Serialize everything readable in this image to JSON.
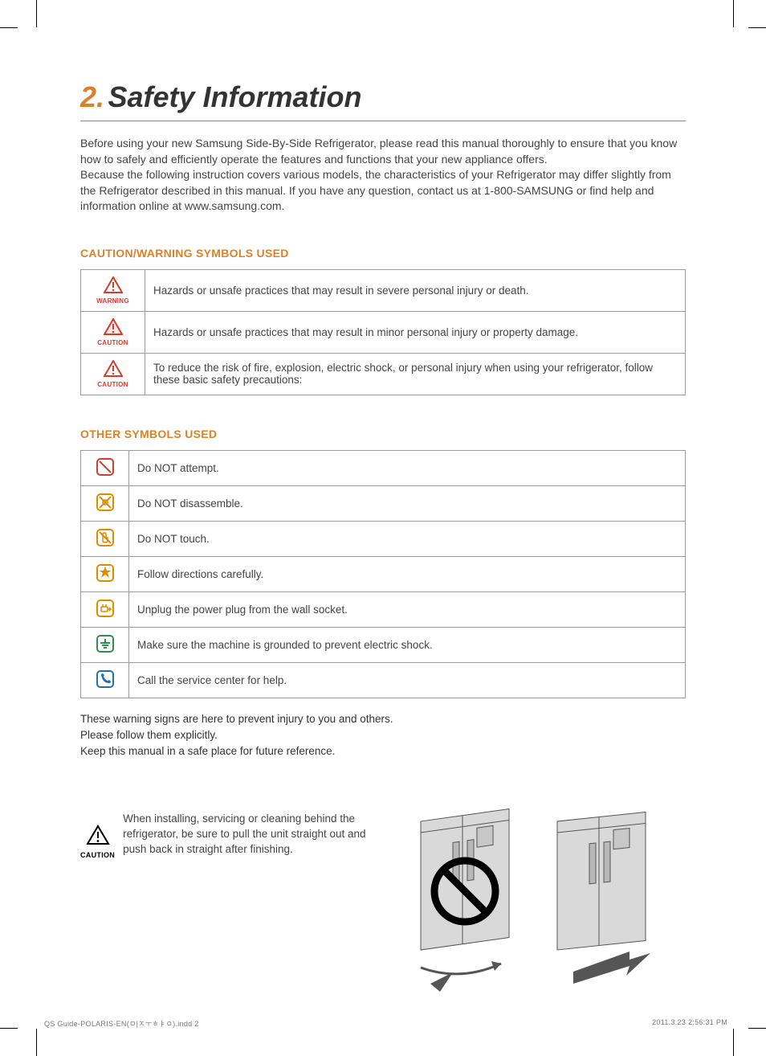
{
  "colors": {
    "accent": "#d9822b",
    "text": "#333333",
    "body": "#444444",
    "border": "#9a9a9a",
    "rule": "#8a8a8a",
    "icon_red": "#d43c2e",
    "icon_blue": "#1f6fb2",
    "icon_orange": "#e08a00",
    "icon_green": "#2f8f4e",
    "bg": "#ffffff",
    "fridge_fill": "#d9d9d9",
    "fridge_stroke": "#555555"
  },
  "title": {
    "num": "2.",
    "text": "Safety Information"
  },
  "intro": "Before using your new Samsung Side-By-Side Refrigerator, please read this manual thoroughly to ensure that you know how to safely and efficiently operate the features and functions that your new appliance offers.\nBecause the following instruction covers various models, the characteristics of your Refrigerator may differ slightly from the Refrigerator described in this manual. If you have any question, contact us at 1-800-SAMSUNG or find help and information online at www.samsung.com.",
  "section1_head": "CAUTION/WARNING SYMBOLS USED",
  "warning_table": [
    {
      "label": "WARNING",
      "label_color": "#d43c2e",
      "icon": "warning-triangle",
      "desc": "Hazards or unsafe practices that may result in severe personal injury or death."
    },
    {
      "label": "CAUTION",
      "label_color": "#d43c2e",
      "icon": "caution-triangle",
      "desc": "Hazards or unsafe practices that may result in minor personal injury or property damage."
    },
    {
      "label": "CAUTION",
      "label_color": "#d43c2e",
      "icon": "warning-triangle",
      "desc": "To reduce the risk of fire, explosion, electric shock, or personal injury when using your refrigerator, follow these basic safety precautions:"
    }
  ],
  "section2_head": "OTHER SYMBOLS USED",
  "other_table": [
    {
      "icon": "no-attempt",
      "color": "#d43c2e",
      "desc": "Do NOT attempt."
    },
    {
      "icon": "no-disassemble",
      "color": "#e08a00",
      "desc": "Do NOT disassemble."
    },
    {
      "icon": "no-touch",
      "color": "#e08a00",
      "desc": "Do NOT touch."
    },
    {
      "icon": "follow-directions",
      "color": "#e08a00",
      "desc": "Follow directions carefully."
    },
    {
      "icon": "unplug",
      "color": "#e08a00",
      "desc": "Unplug the power plug from the wall socket."
    },
    {
      "icon": "ground",
      "color": "#2f8f4e",
      "desc": "Make sure the machine is grounded to prevent electric shock."
    },
    {
      "icon": "call-service",
      "color": "#1f6fb2",
      "desc": "Call the service center for help."
    }
  ],
  "notes": [
    "These warning signs are here to prevent injury to you and others.",
    "Please follow them explicitly.",
    "Keep this manual in a safe place for future reference."
  ],
  "bottom_caution": {
    "label": "CAUTION",
    "text": "When installing, servicing or cleaning behind the refrigerator, be sure to pull the unit straight out and push back in straight after finishing."
  },
  "footer": {
    "left": "QS Guide-POLARIS-EN(ㅁ|ㅈㅜㅎㅑㅇ).indd   2",
    "right": "2011.3.23   2:56:31 PM"
  }
}
